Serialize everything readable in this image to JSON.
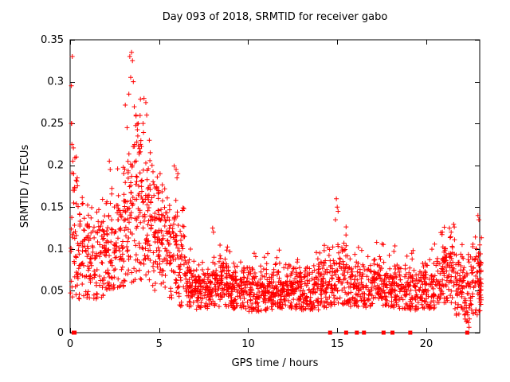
{
  "chart_data": {
    "type": "scatter",
    "title": "Day 093 of 2018, SRMTID for receiver gabo",
    "xlabel": "GPS time / hours",
    "ylabel": "SRMTID / TECUs",
    "xlim": [
      0,
      23
    ],
    "ylim": [
      0,
      0.35
    ],
    "xticks": [
      0,
      5,
      10,
      15,
      20
    ],
    "xtick_labels": [
      "0",
      "5",
      "10",
      "15",
      "20"
    ],
    "yticks": [
      0,
      0.05,
      0.1,
      0.15,
      0.2,
      0.25,
      0.3,
      0.35
    ],
    "ytick_labels": [
      "0",
      "0.05",
      "0.1",
      "0.15",
      "0.2",
      "0.25",
      "0.3",
      "0.35"
    ],
    "grid": false,
    "legend": "none",
    "marker": "plus",
    "marker_color": "#ff0000",
    "border_color": "#000000",
    "background": "#ffffff",
    "seed": 93,
    "bins_format": [
      "x_start",
      "x_end",
      "count",
      "mean",
      "sd",
      "min",
      "max"
    ],
    "density_bins": [
      [
        0.0,
        0.3,
        25,
        0.13,
        0.06,
        0.04,
        0.25
      ],
      [
        0.3,
        1.0,
        70,
        0.1,
        0.035,
        0.04,
        0.21
      ],
      [
        1.0,
        1.5,
        50,
        0.085,
        0.025,
        0.04,
        0.16
      ],
      [
        1.5,
        2.0,
        50,
        0.09,
        0.03,
        0.04,
        0.17
      ],
      [
        2.0,
        2.5,
        55,
        0.1,
        0.035,
        0.05,
        0.21
      ],
      [
        2.5,
        3.0,
        55,
        0.11,
        0.035,
        0.05,
        0.2
      ],
      [
        3.0,
        3.5,
        60,
        0.14,
        0.05,
        0.06,
        0.3
      ],
      [
        3.5,
        4.0,
        60,
        0.15,
        0.055,
        0.06,
        0.335
      ],
      [
        4.0,
        4.5,
        60,
        0.13,
        0.05,
        0.06,
        0.28
      ],
      [
        4.5,
        5.0,
        60,
        0.12,
        0.04,
        0.05,
        0.24
      ],
      [
        5.0,
        5.5,
        55,
        0.11,
        0.03,
        0.05,
        0.19
      ],
      [
        5.5,
        6.0,
        55,
        0.1,
        0.035,
        0.04,
        0.2
      ],
      [
        6.0,
        6.5,
        50,
        0.08,
        0.03,
        0.03,
        0.15
      ],
      [
        6.5,
        7.0,
        55,
        0.055,
        0.018,
        0.03,
        0.11
      ],
      [
        7.0,
        8.0,
        110,
        0.05,
        0.015,
        0.028,
        0.1
      ],
      [
        8.0,
        9.0,
        110,
        0.06,
        0.018,
        0.03,
        0.105
      ],
      [
        9.0,
        10.0,
        110,
        0.05,
        0.016,
        0.028,
        0.1
      ],
      [
        10.0,
        11.0,
        110,
        0.048,
        0.015,
        0.025,
        0.095
      ],
      [
        11.0,
        12.0,
        110,
        0.05,
        0.016,
        0.027,
        0.1
      ],
      [
        12.0,
        13.0,
        110,
        0.052,
        0.016,
        0.028,
        0.1
      ],
      [
        13.0,
        14.0,
        100,
        0.05,
        0.016,
        0.027,
        0.1
      ],
      [
        14.0,
        15.0,
        100,
        0.058,
        0.02,
        0.03,
        0.13
      ],
      [
        15.0,
        15.5,
        50,
        0.065,
        0.025,
        0.03,
        0.16
      ],
      [
        15.5,
        16.5,
        100,
        0.055,
        0.018,
        0.03,
        0.11
      ],
      [
        16.5,
        17.5,
        100,
        0.06,
        0.018,
        0.03,
        0.12
      ],
      [
        17.5,
        18.5,
        100,
        0.055,
        0.017,
        0.03,
        0.11
      ],
      [
        18.5,
        19.5,
        95,
        0.05,
        0.016,
        0.027,
        0.1
      ],
      [
        19.5,
        20.5,
        95,
        0.055,
        0.018,
        0.028,
        0.12
      ],
      [
        20.5,
        21.0,
        50,
        0.065,
        0.022,
        0.03,
        0.125
      ],
      [
        21.0,
        21.6,
        65,
        0.08,
        0.025,
        0.035,
        0.13
      ],
      [
        21.6,
        22.1,
        55,
        0.055,
        0.02,
        0.02,
        0.11
      ],
      [
        22.1,
        22.5,
        45,
        0.04,
        0.025,
        0.005,
        0.1
      ],
      [
        22.5,
        23.1,
        70,
        0.065,
        0.025,
        0.02,
        0.145
      ]
    ],
    "outlier_points": [
      [
        0.07,
        0.25
      ],
      [
        0.09,
        0.25
      ],
      [
        0.07,
        0.295
      ],
      [
        0.12,
        0.33
      ],
      [
        0.1,
        0.225
      ],
      [
        0.15,
        0.205
      ],
      [
        0.2,
        0.19
      ],
      [
        0.2,
        0.155
      ],
      [
        0.35,
        0.21
      ],
      [
        0.4,
        0.185
      ],
      [
        2.2,
        0.205
      ],
      [
        2.25,
        0.195
      ],
      [
        3.35,
        0.33
      ],
      [
        3.45,
        0.335
      ],
      [
        3.5,
        0.325
      ],
      [
        3.4,
        0.305
      ],
      [
        3.55,
        0.3
      ],
      [
        3.3,
        0.285
      ],
      [
        3.6,
        0.27
      ],
      [
        3.7,
        0.26
      ],
      [
        3.2,
        0.245
      ],
      [
        3.8,
        0.235
      ],
      [
        3.9,
        0.22
      ],
      [
        4.15,
        0.28
      ],
      [
        4.25,
        0.275
      ],
      [
        4.3,
        0.26
      ],
      [
        4.1,
        0.25
      ],
      [
        4.45,
        0.23
      ],
      [
        4.5,
        0.215
      ],
      [
        4.6,
        0.2
      ],
      [
        5.05,
        0.19
      ],
      [
        5.95,
        0.195
      ],
      [
        6.0,
        0.185
      ],
      [
        6.05,
        0.19
      ],
      [
        8.0,
        0.125
      ],
      [
        8.05,
        0.12
      ],
      [
        14.95,
        0.16
      ],
      [
        15.0,
        0.15
      ],
      [
        15.05,
        0.145
      ],
      [
        14.9,
        0.135
      ],
      [
        20.9,
        0.12
      ],
      [
        21.3,
        0.125
      ],
      [
        21.4,
        0.12
      ],
      [
        22.9,
        0.14
      ],
      [
        22.95,
        0.135
      ]
    ],
    "zero_marker_x": [
      0.2,
      0.25,
      14.6,
      15.5,
      16.1,
      16.5,
      17.6,
      18.1,
      19.1,
      22.3
    ]
  }
}
